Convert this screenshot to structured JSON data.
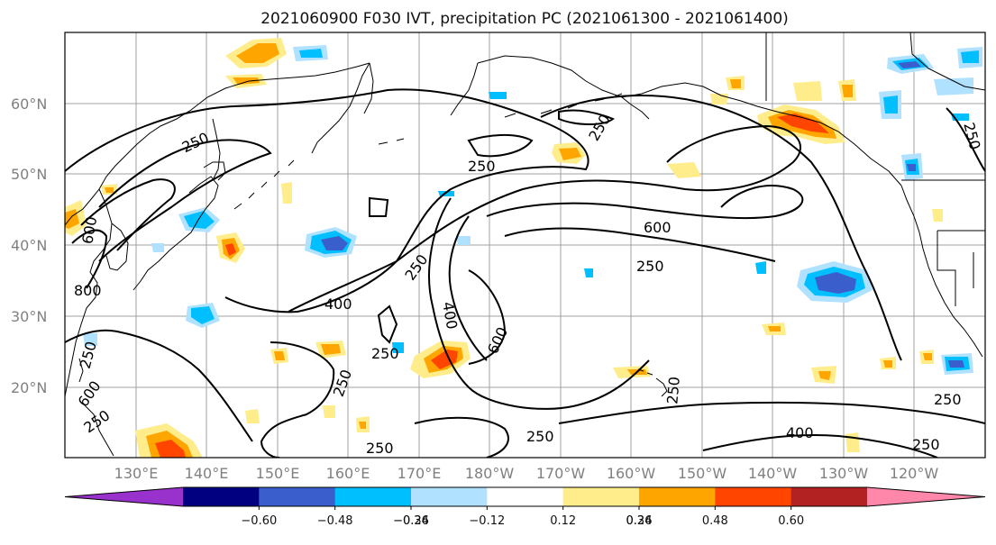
{
  "title": "2021060900 F030 IVT, precipitation PC (2021061300 - 2021061400)",
  "lat_labels": [
    "60°N",
    "50°N",
    "40°N",
    "30°N",
    "20°N"
  ],
  "lon_labels": [
    "130°E",
    "140°E",
    "150°E",
    "160°E",
    "170°E",
    "180°W",
    "170°W",
    "160°W",
    "150°W",
    "140°W",
    "130°W",
    "120°W"
  ],
  "contour_levels": {
    "c250": "250",
    "c400": "400",
    "c600": "600",
    "c800": "800"
  },
  "colorbar": {
    "ticks": [
      "−0.60",
      "−0.48",
      "−0.36",
      "−0.24",
      "−0.12",
      "0.12",
      "0.24",
      "0.36",
      "0.48",
      "0.60"
    ],
    "colors": [
      "#9932cc",
      "#000080",
      "#3a5fcd",
      "#00bfff",
      "#b0e2ff",
      "#ffffff",
      "#ffec8b",
      "#ffa500",
      "#ff4500",
      "#b22222",
      "#ff88aa"
    ]
  },
  "colors": {
    "contour": "#000000",
    "coast": "#000000",
    "grid": "#a0a0a0"
  }
}
